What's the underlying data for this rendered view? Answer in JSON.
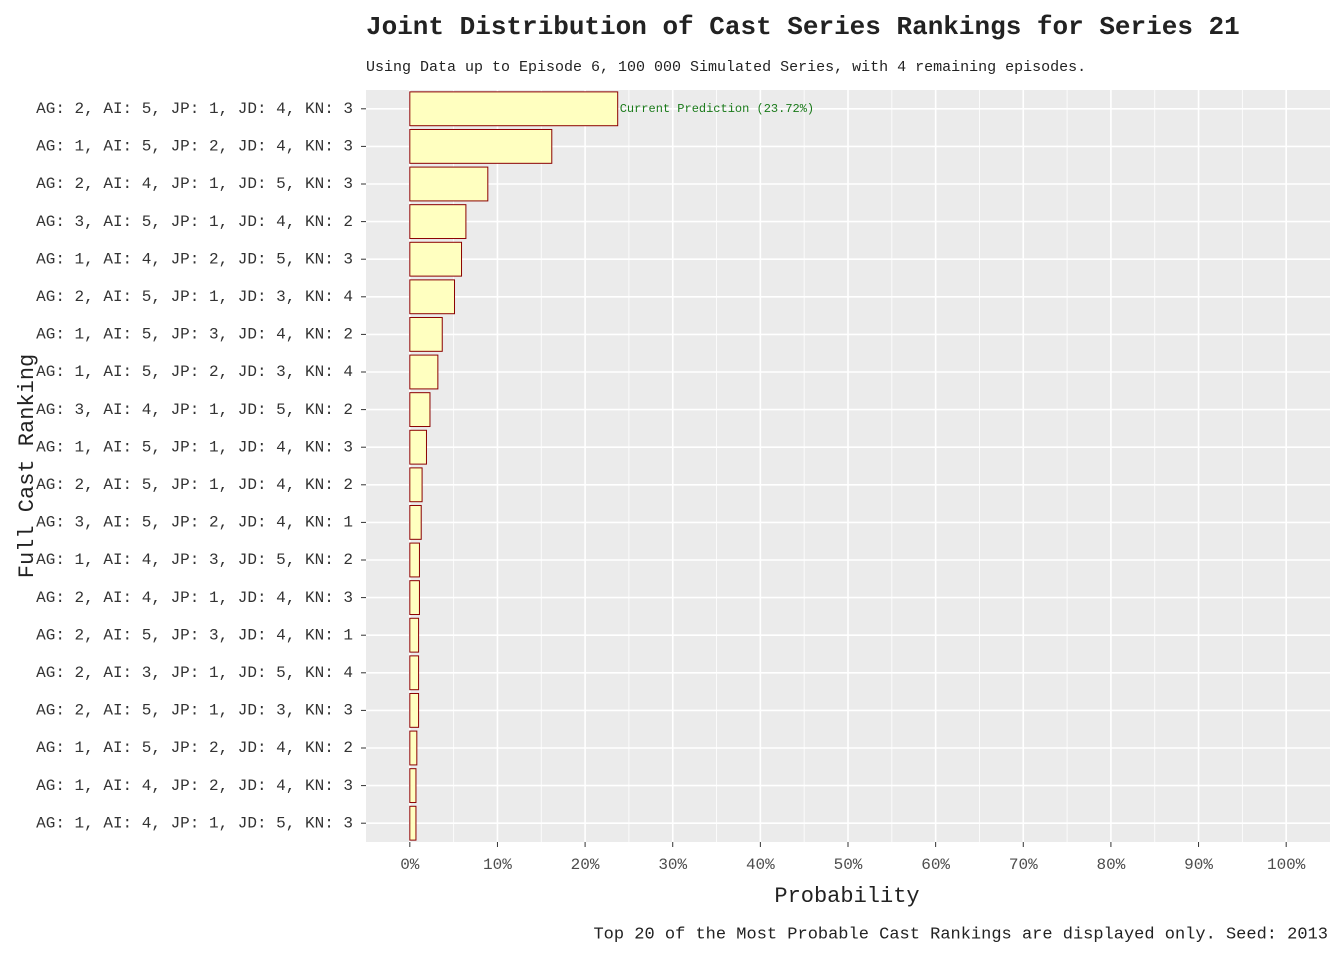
{
  "chart_data": {
    "type": "barh",
    "title": "Joint Distribution of Cast Series Rankings for Series 21",
    "subtitle": "Using Data up to Episode 6, 100 000 Simulated Series, with 4 remaining episodes.",
    "xlabel": "Probability",
    "ylabel": "Full Cast Ranking",
    "caption": "Top 20 of the Most Probable Cast Rankings are displayed only. Seed: 2013",
    "annotation": "Current Prediction (23.72%)",
    "categories": [
      "AG: 2, AI: 5, JP: 1, JD: 4, KN: 3",
      "AG: 1, AI: 5, JP: 2, JD: 4, KN: 3",
      "AG: 2, AI: 4, JP: 1, JD: 5, KN: 3",
      "AG: 3, AI: 5, JP: 1, JD: 4, KN: 2",
      "AG: 1, AI: 4, JP: 2, JD: 5, KN: 3",
      "AG: 2, AI: 5, JP: 1, JD: 3, KN: 4",
      "AG: 1, AI: 5, JP: 3, JD: 4, KN: 2",
      "AG: 1, AI: 5, JP: 2, JD: 3, KN: 4",
      "AG: 3, AI: 4, JP: 1, JD: 5, KN: 2",
      "AG: 1, AI: 5, JP: 1, JD: 4, KN: 3",
      "AG: 2, AI: 5, JP: 1, JD: 4, KN: 2",
      "AG: 3, AI: 5, JP: 2, JD: 4, KN: 1",
      "AG: 1, AI: 4, JP: 3, JD: 5, KN: 2",
      "AG: 2, AI: 4, JP: 1, JD: 4, KN: 3",
      "AG: 2, AI: 5, JP: 3, JD: 4, KN: 1",
      "AG: 2, AI: 3, JP: 1, JD: 5, KN: 4",
      "AG: 2, AI: 5, JP: 1, JD: 3, KN: 3",
      "AG: 1, AI: 5, JP: 2, JD: 4, KN: 2",
      "AG: 1, AI: 4, JP: 2, JD: 4, KN: 3",
      "AG: 1, AI: 4, JP: 1, JD: 5, KN: 3"
    ],
    "values": [
      23.72,
      16.2,
      8.9,
      6.4,
      5.9,
      5.1,
      3.7,
      3.2,
      2.3,
      1.9,
      1.4,
      1.3,
      1.1,
      1.1,
      1.0,
      1.0,
      1.0,
      0.8,
      0.7,
      0.7
    ],
    "color": "#ffffc0",
    "edgecolor": "#8b0000",
    "annotation_color": "#1a7a1a",
    "xlim": [
      -5,
      105
    ],
    "xticks": [
      {
        "value": 0,
        "label": "0%"
      },
      {
        "value": 10,
        "label": "10%"
      },
      {
        "value": 20,
        "label": "20%"
      },
      {
        "value": 30,
        "label": "30%"
      },
      {
        "value": 40,
        "label": "40%"
      },
      {
        "value": 50,
        "label": "50%"
      },
      {
        "value": 60,
        "label": "60%"
      },
      {
        "value": 70,
        "label": "70%"
      },
      {
        "value": 80,
        "label": "80%"
      },
      {
        "value": 90,
        "label": "90%"
      },
      {
        "value": 100,
        "label": "100%"
      }
    ],
    "grid": true
  }
}
